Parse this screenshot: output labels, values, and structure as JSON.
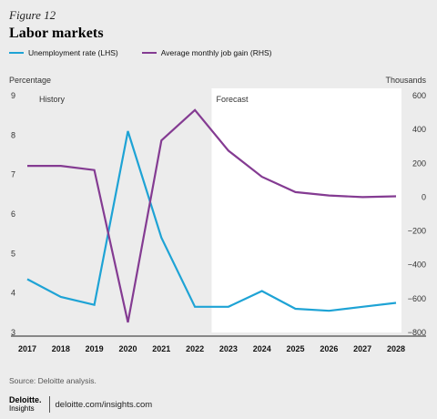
{
  "figure_label": "Figure 12",
  "source": "Source: Deloitte analysis.",
  "footer": {
    "logo_main": "Deloitte.",
    "logo_sub": "Insights",
    "url": "deloitte.com/insights.com"
  },
  "chart_data": {
    "type": "line",
    "title": "Labor markets",
    "x": [
      "2017",
      "2018",
      "2019",
      "2020",
      "2021",
      "2022",
      "2023",
      "2024",
      "2025",
      "2026",
      "2027",
      "2028"
    ],
    "left_axis": {
      "title": "Percentage",
      "ylim": [
        3,
        9
      ],
      "ticks": [
        3,
        4,
        5,
        6,
        7,
        8,
        9
      ]
    },
    "right_axis": {
      "title": "Thousands",
      "ylim": [
        -800,
        600
      ],
      "ticks": [
        -800,
        -600,
        -400,
        -200,
        0,
        200,
        400,
        600
      ],
      "tick_labels": [
        "−800",
        "−600",
        "−400",
        "−200",
        "0",
        "200",
        "400",
        "600"
      ]
    },
    "regions": [
      {
        "label": "History",
        "start": "2017",
        "end": "2022.5"
      },
      {
        "label": "Forecast",
        "start": "2022.5",
        "end": "2028"
      }
    ],
    "series": [
      {
        "name": "Unemployment rate (LHS)",
        "axis": "left",
        "color": "#1ea3d5",
        "values": [
          4.35,
          3.9,
          3.7,
          8.1,
          5.4,
          3.65,
          3.65,
          4.05,
          3.6,
          3.55,
          3.65,
          3.75
        ]
      },
      {
        "name": "Average monthly job gain (RHS)",
        "axis": "right",
        "color": "#843b92",
        "values": [
          185,
          185,
          160,
          -740,
          335,
          515,
          275,
          120,
          30,
          10,
          0,
          5
        ]
      }
    ],
    "grid": false,
    "legend": "top-left"
  }
}
